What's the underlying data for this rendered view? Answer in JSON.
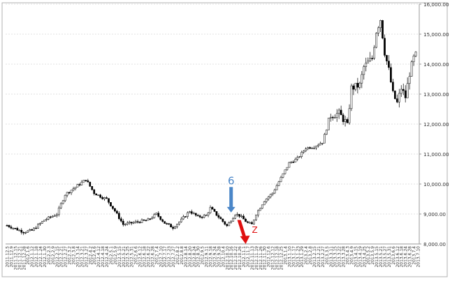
{
  "chart_data": {
    "type": "candlestick",
    "title": "",
    "xlabel": "",
    "ylabel": "",
    "ylim": [
      8000,
      16000
    ],
    "yticks": [
      8000,
      9000,
      10000,
      11000,
      12000,
      13000,
      14000,
      15000,
      16000
    ],
    "ytick_labels": [
      "8,000.00",
      "9,000.00",
      "10,000.00",
      "11,000.00",
      "12,000.00",
      "13,000.00",
      "14,000.00",
      "15,000.00",
      "16,000.00"
    ],
    "y_axis_position": "right",
    "grid": "horizontal-dashed",
    "xtick_labels": [
      "2011.12.5",
      "2011.12.9",
      "2011.12.15",
      "2011.12.21",
      "2011.12.28",
      "2012.1.6",
      "2012.1.12",
      "2012.1.18",
      "2012.1.24",
      "2012.1.30",
      "2012.2.3",
      "2012.2.9",
      "2012.2.15",
      "2012.2.21",
      "2012.2.27",
      "2012.3.2",
      "2012.3.8",
      "2012.3.14",
      "2012.3.21",
      "2012.3.27",
      "2012.4.2",
      "2012.4.6",
      "2012.4.12",
      "2012.4.18",
      "2012.4.24",
      "2012.5.1",
      "2012.5.9",
      "2012.5.15",
      "2012.5.21",
      "2012.5.25",
      "2012.5.31",
      "2012.6.6",
      "2012.6.12",
      "2012.6.18",
      "2012.6.22",
      "2012.6.28",
      "2012.7.4",
      "2012.7.10",
      "2012.7.17",
      "2012.7.23",
      "2012.7.27",
      "2012.8.2",
      "2012.8.8",
      "2012.8.14",
      "2012.8.20",
      "2012.8.24",
      "2012.8.30",
      "2012.9.5",
      "2012.9.11",
      "2012.9.18",
      "2012.9.24",
      "2012.9.28",
      "2012.10.4",
      "2012.10.10",
      "2012.10.16",
      "2012.10.22",
      "2012.10.26",
      "2012.11.1",
      "2012.11.7",
      "2012.11.13",
      "2012.11.19",
      "2012.11.26",
      "2012.11.30",
      "2012.12.6",
      "2012.12.12",
      "2012.12.18",
      "2012.12.25",
      "2013.1.4",
      "2013.1.10",
      "2013.1.17",
      "2013.1.23",
      "2013.1.29",
      "2013.2.4",
      "2013.2.8",
      "2013.2.15",
      "2013.2.21",
      "2013.2.27",
      "2013.3.5",
      "2013.3.11",
      "2013.3.15",
      "2013.3.22",
      "2013.3.28",
      "2013.4.3",
      "2013.4.9",
      "2013.4.15",
      "2013.4.19",
      "2013.4.25",
      "2013.5.2",
      "2013.5.9",
      "2013.5.15",
      "2013.5.21",
      "2013.5.27",
      "2013.5.31",
      "2013.6.6",
      "2013.6.12",
      "2013.6.18",
      "2013.6.24",
      "2013.6.28",
      "2013.7.4",
      "2013.7.10"
    ],
    "close_path": [
      [
        "2011.12.5",
        8620
      ],
      [
        "2011.12.28",
        8400
      ],
      [
        "2012.1.12",
        8450
      ],
      [
        "2012.1.30",
        8800
      ],
      [
        "2012.2.15",
        9000
      ],
      [
        "2012.2.27",
        9650
      ],
      [
        "2012.3.14",
        9950
      ],
      [
        "2012.3.27",
        10150
      ],
      [
        "2012.4.6",
        9700
      ],
      [
        "2012.4.18",
        9550
      ],
      [
        "2012.4.24",
        9500
      ],
      [
        "2012.5.9",
        9100
      ],
      [
        "2012.5.21",
        8650
      ],
      [
        "2012.6.4",
        8450
      ],
      [
        "2012.6.22",
        8800
      ],
      [
        "2012.7.4",
        9000
      ],
      [
        "2012.7.17",
        8700
      ],
      [
        "2012.7.27",
        8550
      ],
      [
        "2012.8.8",
        8800
      ],
      [
        "2012.8.20",
        9100
      ],
      [
        "2012.8.30",
        8900
      ],
      [
        "2012.9.11",
        8950
      ],
      [
        "2012.9.18",
        9200
      ],
      [
        "2012.9.28",
        8900
      ],
      [
        "2012.10.10",
        8600
      ],
      [
        "2012.10.22",
        9000
      ],
      [
        "2012.10.26",
        8950
      ],
      [
        "2012.11.7",
        8700
      ],
      [
        "2012.11.13",
        8650
      ],
      [
        "2012.11.19",
        9000
      ],
      [
        "2012.11.30",
        9450
      ],
      [
        "2012.12.12",
        9700
      ],
      [
        "2012.12.25",
        10200
      ],
      [
        "2013.1.10",
        10700
      ],
      [
        "2013.1.23",
        10850
      ],
      [
        "2013.2.4",
        11200
      ],
      [
        "2013.2.15",
        11250
      ],
      [
        "2013.2.27",
        11400
      ],
      [
        "2013.3.11",
        12300
      ],
      [
        "2013.3.22",
        12350
      ],
      [
        "2013.4.3",
        12000
      ],
      [
        "2013.4.9",
        13200
      ],
      [
        "2013.4.19",
        13300
      ],
      [
        "2013.4.25",
        13900
      ],
      [
        "2013.5.9",
        14200
      ],
      [
        "2013.5.15",
        15100
      ],
      [
        "2013.5.21",
        15500
      ],
      [
        "2013.5.27",
        14400
      ],
      [
        "2013.5.31",
        13800
      ],
      [
        "2013.6.6",
        13000
      ],
      [
        "2013.6.12",
        12700
      ],
      [
        "2013.6.18",
        13200
      ],
      [
        "2013.6.24",
        12900
      ],
      [
        "2013.6.28",
        13700
      ],
      [
        "2013.7.4",
        14200
      ],
      [
        "2013.7.10",
        14400
      ]
    ],
    "annotations": [
      {
        "label": "6",
        "x": "2012.10.16",
        "y_from": 9900,
        "y_to": 9050,
        "direction": "down",
        "color": "#4a86c8"
      },
      {
        "label": "Z",
        "x": "2012.10.26",
        "y_from": 8800,
        "y_to": 8000,
        "direction": "down-right",
        "color": "#e01010"
      }
    ]
  }
}
